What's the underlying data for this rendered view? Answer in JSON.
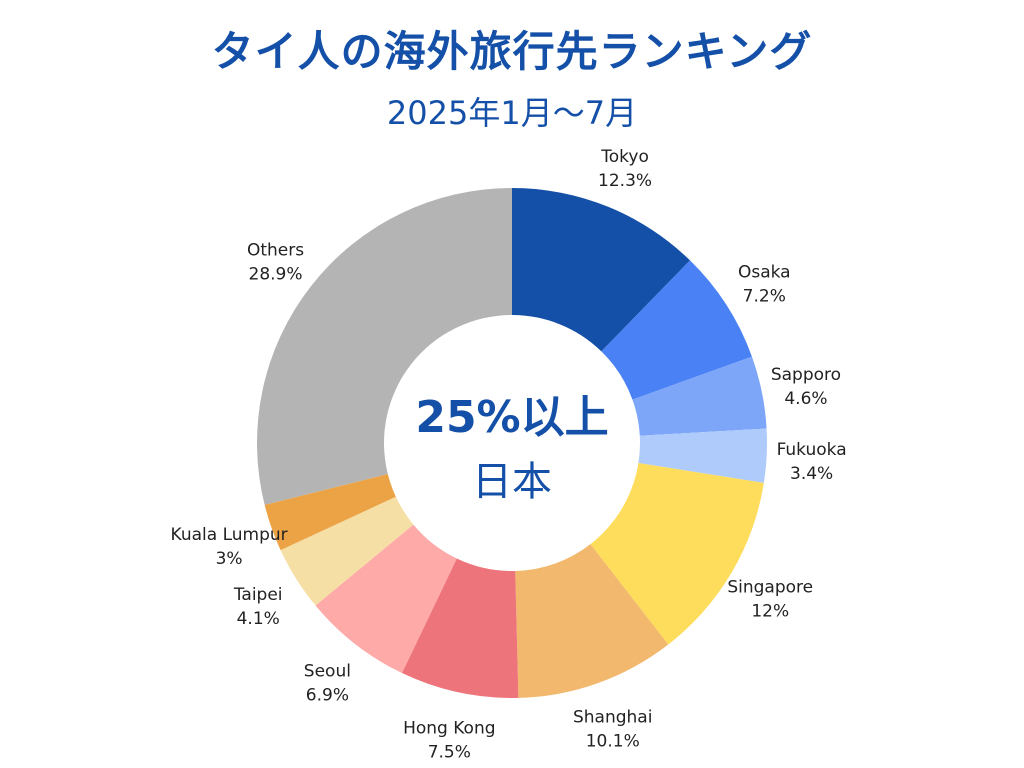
{
  "chart_data": {
    "type": "pie",
    "donut": true,
    "title": "タイ人の海外旅行先ランキング",
    "subtitle": "2025年1月～7月",
    "center_label": {
      "line1": "25%以上",
      "line2": "日本"
    },
    "legend": "none",
    "slices": [
      {
        "label": "Tokyo",
        "value": 12.3,
        "display": "12.3%",
        "color": "#1550a8"
      },
      {
        "label": "Osaka",
        "value": 7.2,
        "display": "7.2%",
        "color": "#4a82f5"
      },
      {
        "label": "Sapporo",
        "value": 4.6,
        "display": "4.6%",
        "color": "#7ea6f8"
      },
      {
        "label": "Fukuoka",
        "value": 3.4,
        "display": "3.4%",
        "color": "#aecbfb"
      },
      {
        "label": "Singapore",
        "value": 12,
        "display": "12%",
        "color": "#fedd5c"
      },
      {
        "label": "Shanghai",
        "value": 10.1,
        "display": "10.1%",
        "color": "#f2b86e"
      },
      {
        "label": "Hong Kong",
        "value": 7.5,
        "display": "7.5%",
        "color": "#ee747c"
      },
      {
        "label": "Seoul",
        "value": 6.9,
        "display": "6.9%",
        "color": "#fdaaa8"
      },
      {
        "label": "Taipei",
        "value": 4.1,
        "display": "4.1%",
        "color": "#f5dfa5"
      },
      {
        "label": "Kuala Lumpur",
        "value": 3,
        "display": "3%",
        "color": "#eca345"
      },
      {
        "label": "Others",
        "value": 28.9,
        "display": "28.9%",
        "color": "#b4b4b4"
      }
    ]
  }
}
